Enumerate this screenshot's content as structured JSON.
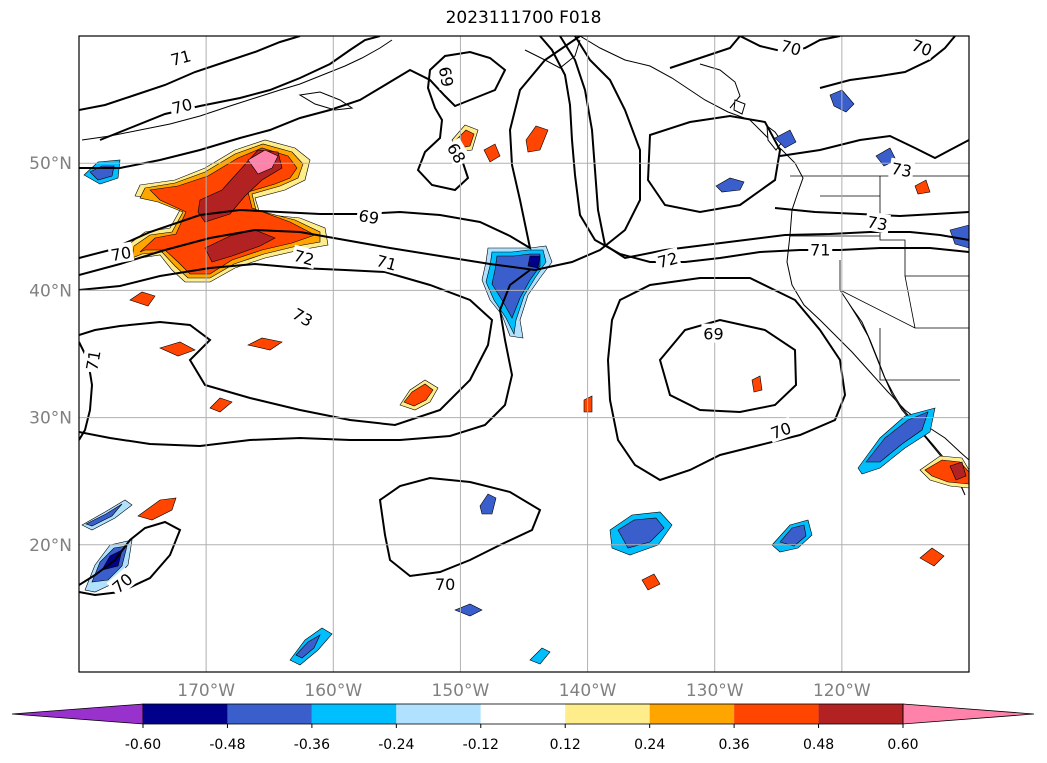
{
  "title": "2023111700 F018",
  "map": {
    "lon_range": [
      -180,
      -110
    ],
    "lat_range": [
      10,
      60
    ],
    "lon_ticks": [
      {
        "lon": -170,
        "label": "170°W"
      },
      {
        "lon": -160,
        "label": "160°W"
      },
      {
        "lon": -150,
        "label": "150°W"
      },
      {
        "lon": -140,
        "label": "140°W"
      },
      {
        "lon": -130,
        "label": "130°W"
      },
      {
        "lon": -120,
        "label": "120°W"
      }
    ],
    "lat_ticks": [
      {
        "lat": 50,
        "label": "50°N"
      },
      {
        "lat": 40,
        "label": "40°N"
      },
      {
        "lat": 30,
        "label": "30°N"
      },
      {
        "lat": 20,
        "label": "20°N"
      }
    ],
    "gridlines": true,
    "contour_labels": [
      {
        "text": "71",
        "lon": -172,
        "lat": 58.3,
        "rot": -15
      },
      {
        "text": "70",
        "lon": -171.9,
        "lat": 54.5,
        "rot": -15
      },
      {
        "text": "69",
        "lon": -151.1,
        "lat": 56.8,
        "rot": 80
      },
      {
        "text": "68",
        "lon": -150.3,
        "lat": 50.8,
        "rot": 60
      },
      {
        "text": "70",
        "lon": -124.0,
        "lat": 59.1,
        "rot": 15
      },
      {
        "text": "70",
        "lon": -113.7,
        "lat": 59.1,
        "rot": 20
      },
      {
        "text": "73",
        "lon": -115.3,
        "lat": 49.5,
        "rot": 10
      },
      {
        "text": "73",
        "lon": -117.2,
        "lat": 45.3,
        "rot": 10
      },
      {
        "text": "69",
        "lon": -157.2,
        "lat": 45.8,
        "rot": 10
      },
      {
        "text": "70",
        "lon": -176.7,
        "lat": 42.9,
        "rot": -10
      },
      {
        "text": "72",
        "lon": -162.3,
        "lat": 42.6,
        "rot": 15
      },
      {
        "text": "71",
        "lon": -155.8,
        "lat": 42.2,
        "rot": 15
      },
      {
        "text": "73",
        "lon": -162.4,
        "lat": 37.9,
        "rot": 30
      },
      {
        "text": "72",
        "lon": -133.7,
        "lat": 42.4,
        "rot": -15
      },
      {
        "text": "71",
        "lon": -121.7,
        "lat": 43.2,
        "rot": 0
      },
      {
        "text": "69",
        "lon": -130.1,
        "lat": 36.6,
        "rot": 0
      },
      {
        "text": "70",
        "lon": -124.8,
        "lat": 29.0,
        "rot": -20
      },
      {
        "text": "71",
        "lon": -178.9,
        "lat": 34.5,
        "rot": -80
      },
      {
        "text": "70",
        "lon": -151.2,
        "lat": 16.9,
        "rot": 0
      },
      {
        "text": "70",
        "lon": -176.6,
        "lat": 17.0,
        "rot": -40
      }
    ]
  },
  "colorbar": {
    "ticks": [
      "-0.60",
      "-0.48",
      "-0.36",
      "-0.24",
      "-0.12",
      "0.12",
      "0.24",
      "0.36",
      "0.48",
      "0.60"
    ],
    "colors": [
      "#9932cc",
      "#00008b",
      "#3a5fcd",
      "#00bfff",
      "#b0e2ff",
      "#ffffff",
      "#ffec8b",
      "#ffa500",
      "#ff4500",
      "#b22222",
      "#ff82ab"
    ],
    "extend": "both"
  }
}
